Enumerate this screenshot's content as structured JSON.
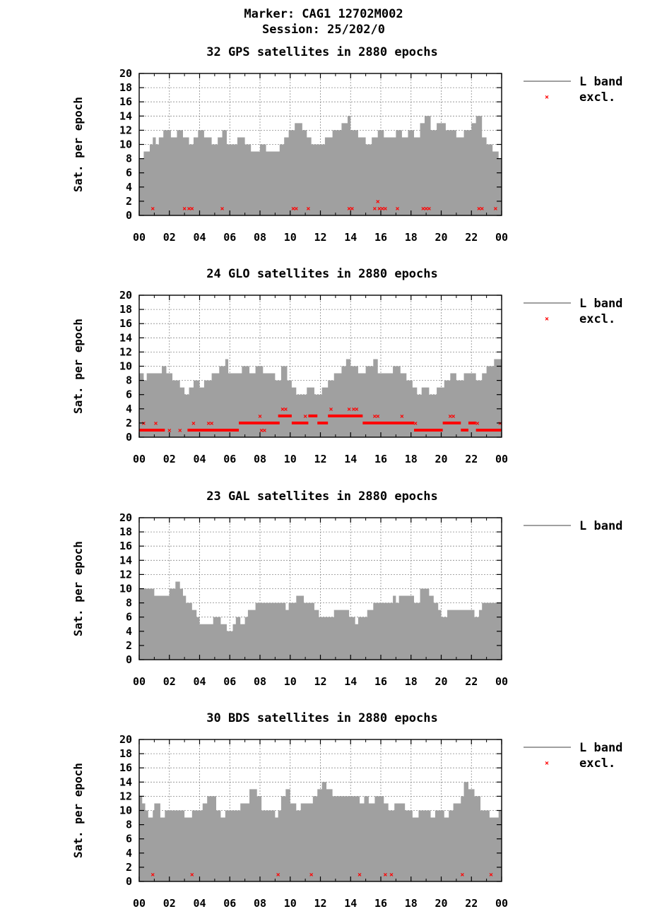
{
  "header": {
    "marker_line": "Marker: CAG1 12702M002",
    "session_line": "Session: 25/202/0"
  },
  "colors": {
    "band_fill": "#a0a0a0",
    "excl_marker": "#ff0000",
    "grid": "#8a8a8a",
    "axis": "#000000"
  },
  "chart_data": [
    {
      "type": "area",
      "title": "32 GPS satellites in 2880 epochs",
      "ylabel": "Sat. per epoch",
      "xlabel": "",
      "ylim": [
        0,
        20
      ],
      "yticks": [
        "0",
        "2",
        "4",
        "6",
        "8",
        "10",
        "12",
        "14",
        "16",
        "18",
        "20"
      ],
      "xticks": [
        "00",
        "02",
        "04",
        "06",
        "08",
        "10",
        "12",
        "14",
        "16",
        "18",
        "20",
        "22",
        "00"
      ],
      "legend": [
        "L band",
        "excl."
      ],
      "band_series": [
        [
          0,
          8
        ],
        [
          0.3,
          9
        ],
        [
          0.7,
          10
        ],
        [
          0.9,
          11
        ],
        [
          1.1,
          10
        ],
        [
          1.3,
          11
        ],
        [
          1.6,
          12
        ],
        [
          2.1,
          11
        ],
        [
          2.5,
          12
        ],
        [
          2.9,
          11
        ],
        [
          3.3,
          10
        ],
        [
          3.6,
          11
        ],
        [
          3.9,
          12
        ],
        [
          4.3,
          11
        ],
        [
          4.8,
          10
        ],
        [
          5.2,
          11
        ],
        [
          5.5,
          12
        ],
        [
          5.8,
          10
        ],
        [
          6.5,
          11
        ],
        [
          7.0,
          10
        ],
        [
          7.4,
          9
        ],
        [
          8.0,
          10
        ],
        [
          8.4,
          9
        ],
        [
          9.3,
          10
        ],
        [
          9.6,
          11
        ],
        [
          9.9,
          12
        ],
        [
          10.3,
          13
        ],
        [
          10.8,
          12
        ],
        [
          11.1,
          11
        ],
        [
          11.4,
          10
        ],
        [
          12.3,
          11
        ],
        [
          12.8,
          12
        ],
        [
          13.4,
          13
        ],
        [
          13.8,
          14
        ],
        [
          14.0,
          12
        ],
        [
          14.5,
          11
        ],
        [
          15.0,
          10
        ],
        [
          15.4,
          11
        ],
        [
          15.8,
          12
        ],
        [
          16.2,
          11
        ],
        [
          17.0,
          12
        ],
        [
          17.4,
          11
        ],
        [
          17.8,
          12
        ],
        [
          18.2,
          11
        ],
        [
          18.6,
          13
        ],
        [
          18.9,
          14
        ],
        [
          19.3,
          12
        ],
        [
          19.7,
          13
        ],
        [
          20.3,
          12
        ],
        [
          21.0,
          11
        ],
        [
          21.5,
          12
        ],
        [
          22.0,
          13
        ],
        [
          22.3,
          14
        ],
        [
          22.7,
          11
        ],
        [
          23.0,
          10
        ],
        [
          23.4,
          9
        ],
        [
          23.8,
          8
        ],
        [
          24.0,
          8
        ]
      ],
      "excl_points": [
        [
          0.9,
          1
        ],
        [
          3.0,
          1
        ],
        [
          3.3,
          1
        ],
        [
          3.5,
          1
        ],
        [
          5.5,
          1
        ],
        [
          10.2,
          1
        ],
        [
          10.4,
          1
        ],
        [
          11.2,
          1
        ],
        [
          13.9,
          1
        ],
        [
          14.1,
          1
        ],
        [
          15.6,
          1
        ],
        [
          15.8,
          2
        ],
        [
          15.9,
          1
        ],
        [
          16.1,
          1
        ],
        [
          16.3,
          1
        ],
        [
          17.1,
          1
        ],
        [
          18.8,
          1
        ],
        [
          19.0,
          1
        ],
        [
          19.2,
          1
        ],
        [
          22.5,
          1
        ],
        [
          22.7,
          1
        ],
        [
          23.6,
          1
        ]
      ]
    },
    {
      "type": "area",
      "title": "24 GLO satellites in 2880 epochs",
      "ylabel": "Sat. per epoch",
      "xlabel": "",
      "ylim": [
        0,
        20
      ],
      "yticks": [
        "0",
        "2",
        "4",
        "6",
        "8",
        "10",
        "12",
        "14",
        "16",
        "18",
        "20"
      ],
      "xticks": [
        "00",
        "02",
        "04",
        "06",
        "08",
        "10",
        "12",
        "14",
        "16",
        "18",
        "20",
        "22",
        "00"
      ],
      "legend": [
        "L band",
        "excl."
      ],
      "band_series": [
        [
          0,
          9
        ],
        [
          0.3,
          8
        ],
        [
          0.5,
          9
        ],
        [
          1.5,
          10
        ],
        [
          1.8,
          9
        ],
        [
          2.2,
          8
        ],
        [
          2.7,
          7
        ],
        [
          3.0,
          6
        ],
        [
          3.3,
          7
        ],
        [
          3.6,
          8
        ],
        [
          4.0,
          7
        ],
        [
          4.3,
          8
        ],
        [
          4.8,
          9
        ],
        [
          5.3,
          10
        ],
        [
          5.7,
          11
        ],
        [
          5.9,
          9
        ],
        [
          6.8,
          10
        ],
        [
          7.3,
          9
        ],
        [
          7.7,
          10
        ],
        [
          8.2,
          9
        ],
        [
          9.0,
          8
        ],
        [
          9.4,
          10
        ],
        [
          9.8,
          8
        ],
        [
          10.1,
          7
        ],
        [
          10.4,
          6
        ],
        [
          11.1,
          7
        ],
        [
          11.6,
          6
        ],
        [
          12.1,
          7
        ],
        [
          12.5,
          8
        ],
        [
          12.9,
          9
        ],
        [
          13.4,
          10
        ],
        [
          13.7,
          11
        ],
        [
          14.0,
          10
        ],
        [
          14.5,
          9
        ],
        [
          15.0,
          10
        ],
        [
          15.5,
          11
        ],
        [
          15.8,
          9
        ],
        [
          16.8,
          10
        ],
        [
          17.3,
          9
        ],
        [
          17.7,
          8
        ],
        [
          18.1,
          7
        ],
        [
          18.4,
          6
        ],
        [
          18.7,
          7
        ],
        [
          19.2,
          6
        ],
        [
          19.7,
          7
        ],
        [
          20.2,
          8
        ],
        [
          20.6,
          9
        ],
        [
          21.0,
          8
        ],
        [
          21.5,
          9
        ],
        [
          22.3,
          8
        ],
        [
          22.7,
          9
        ],
        [
          23.0,
          10
        ],
        [
          23.5,
          11
        ],
        [
          24.0,
          11
        ]
      ],
      "excl_segments": [
        [
          0,
          1.7,
          1
        ],
        [
          3.2,
          6.6,
          1
        ],
        [
          6.6,
          9.3,
          2
        ],
        [
          9.2,
          10.1,
          3
        ],
        [
          10.1,
          11.2,
          2
        ],
        [
          11.2,
          11.8,
          3
        ],
        [
          11.8,
          12.5,
          2
        ],
        [
          12.5,
          14.8,
          3
        ],
        [
          14.8,
          18.2,
          2
        ],
        [
          18.2,
          20.1,
          1
        ],
        [
          20.1,
          21.3,
          2
        ],
        [
          21.3,
          21.8,
          1
        ],
        [
          21.8,
          22.3,
          2
        ],
        [
          22.3,
          24.0,
          1
        ]
      ],
      "excl_points": [
        [
          0.3,
          2
        ],
        [
          1.1,
          2
        ],
        [
          2.0,
          1
        ],
        [
          2.7,
          1
        ],
        [
          3.6,
          2
        ],
        [
          4.6,
          2
        ],
        [
          4.8,
          2
        ],
        [
          8.0,
          3
        ],
        [
          8.1,
          1
        ],
        [
          8.3,
          1
        ],
        [
          9.5,
          4
        ],
        [
          9.7,
          4
        ],
        [
          11.0,
          3
        ],
        [
          12.7,
          4
        ],
        [
          13.9,
          4
        ],
        [
          14.2,
          4
        ],
        [
          14.4,
          4
        ],
        [
          15.6,
          3
        ],
        [
          15.8,
          3
        ],
        [
          17.4,
          3
        ],
        [
          18.3,
          2
        ],
        [
          20.6,
          3
        ],
        [
          20.8,
          3
        ],
        [
          22.4,
          2
        ],
        [
          23.9,
          2
        ]
      ]
    },
    {
      "type": "area",
      "title": "23 GAL satellites in 2880 epochs",
      "ylabel": "Sat. per epoch",
      "xlabel": "",
      "ylim": [
        0,
        20
      ],
      "yticks": [
        "0",
        "2",
        "4",
        "6",
        "8",
        "10",
        "12",
        "14",
        "16",
        "18",
        "20"
      ],
      "xticks": [
        "00",
        "02",
        "04",
        "06",
        "08",
        "10",
        "12",
        "14",
        "16",
        "18",
        "20",
        "22",
        "00"
      ],
      "legend": [
        "L band"
      ],
      "band_series": [
        [
          0,
          10
        ],
        [
          1.0,
          9
        ],
        [
          2.0,
          10
        ],
        [
          2.4,
          11
        ],
        [
          2.7,
          10
        ],
        [
          2.9,
          9
        ],
        [
          3.1,
          8
        ],
        [
          3.5,
          7
        ],
        [
          3.8,
          6
        ],
        [
          4.0,
          5
        ],
        [
          4.9,
          6
        ],
        [
          5.4,
          5
        ],
        [
          5.8,
          4
        ],
        [
          6.2,
          5
        ],
        [
          6.4,
          6
        ],
        [
          6.7,
          5
        ],
        [
          7.0,
          6
        ],
        [
          7.2,
          7
        ],
        [
          7.7,
          8
        ],
        [
          9.7,
          7
        ],
        [
          9.9,
          8
        ],
        [
          10.4,
          9
        ],
        [
          10.9,
          8
        ],
        [
          11.6,
          7
        ],
        [
          11.9,
          6
        ],
        [
          12.9,
          7
        ],
        [
          13.9,
          6
        ],
        [
          14.3,
          5
        ],
        [
          14.5,
          6
        ],
        [
          15.1,
          7
        ],
        [
          15.5,
          8
        ],
        [
          16.8,
          9
        ],
        [
          17.0,
          8
        ],
        [
          17.2,
          9
        ],
        [
          18.2,
          8
        ],
        [
          18.6,
          10
        ],
        [
          19.2,
          9
        ],
        [
          19.5,
          8
        ],
        [
          19.8,
          7
        ],
        [
          20.0,
          6
        ],
        [
          20.4,
          7
        ],
        [
          22.2,
          6
        ],
        [
          22.5,
          7
        ],
        [
          22.7,
          8
        ],
        [
          24.0,
          8
        ]
      ],
      "excl_points": []
    },
    {
      "type": "area",
      "title": "30 BDS satellites in 2880 epochs",
      "ylabel": "Sat. per epoch",
      "xlabel": "",
      "ylim": [
        0,
        20
      ],
      "yticks": [
        "0",
        "2",
        "4",
        "6",
        "8",
        "10",
        "12",
        "14",
        "16",
        "18",
        "20"
      ],
      "xticks": [
        "00",
        "02",
        "04",
        "06",
        "08",
        "10",
        "12",
        "14",
        "16",
        "18",
        "20",
        "22",
        "00"
      ],
      "legend": [
        "L band",
        "excl."
      ],
      "band_series": [
        [
          0,
          12
        ],
        [
          0.2,
          11
        ],
        [
          0.4,
          10
        ],
        [
          0.6,
          9
        ],
        [
          0.9,
          10
        ],
        [
          1.0,
          11
        ],
        [
          1.4,
          9
        ],
        [
          1.7,
          10
        ],
        [
          3.0,
          9
        ],
        [
          3.5,
          10
        ],
        [
          4.2,
          11
        ],
        [
          4.5,
          12
        ],
        [
          5.1,
          10
        ],
        [
          5.4,
          9
        ],
        [
          5.7,
          10
        ],
        [
          6.7,
          11
        ],
        [
          7.3,
          13
        ],
        [
          7.8,
          12
        ],
        [
          8.1,
          10
        ],
        [
          9.0,
          9
        ],
        [
          9.2,
          10
        ],
        [
          9.4,
          12
        ],
        [
          9.7,
          13
        ],
        [
          10.0,
          11
        ],
        [
          10.4,
          10
        ],
        [
          10.7,
          11
        ],
        [
          11.5,
          12
        ],
        [
          11.8,
          13
        ],
        [
          12.1,
          14
        ],
        [
          12.4,
          13
        ],
        [
          12.8,
          12
        ],
        [
          14.6,
          11
        ],
        [
          14.9,
          12
        ],
        [
          15.2,
          11
        ],
        [
          15.6,
          12
        ],
        [
          16.2,
          11
        ],
        [
          16.5,
          10
        ],
        [
          16.9,
          11
        ],
        [
          17.6,
          10
        ],
        [
          18.1,
          9
        ],
        [
          18.5,
          10
        ],
        [
          19.3,
          9
        ],
        [
          19.6,
          10
        ],
        [
          20.2,
          9
        ],
        [
          20.5,
          10
        ],
        [
          20.8,
          11
        ],
        [
          21.3,
          12
        ],
        [
          21.5,
          14
        ],
        [
          21.8,
          13
        ],
        [
          22.2,
          12
        ],
        [
          22.6,
          10
        ],
        [
          23.2,
          9
        ],
        [
          23.6,
          9
        ],
        [
          23.8,
          10
        ],
        [
          24.0,
          10
        ]
      ],
      "excl_points": [
        [
          0.9,
          1
        ],
        [
          3.5,
          1
        ],
        [
          9.2,
          1
        ],
        [
          11.4,
          1
        ],
        [
          14.6,
          1
        ],
        [
          16.3,
          1
        ],
        [
          16.7,
          1
        ],
        [
          21.4,
          1
        ],
        [
          23.3,
          1
        ]
      ]
    }
  ]
}
